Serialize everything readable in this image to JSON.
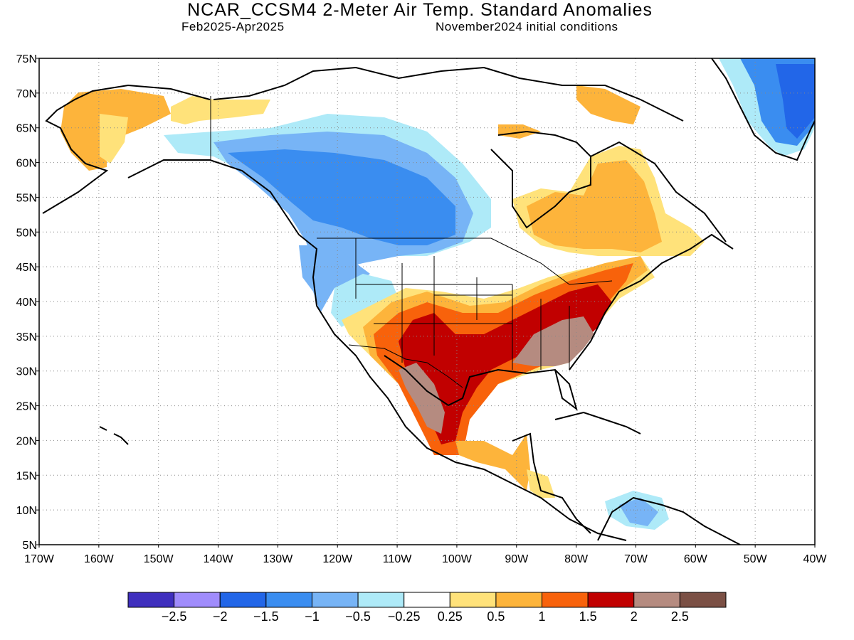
{
  "header": {
    "title": "NCAR_CCSM4 2-Meter Air Temp. Standard Anomalies",
    "period": "Feb2025-Apr2025",
    "initial_conditions": "November2024 initial conditions"
  },
  "map": {
    "lat_ticks": [
      "75N",
      "70N",
      "65N",
      "60N",
      "55N",
      "50N",
      "45N",
      "40N",
      "35N",
      "30N",
      "25N",
      "20N",
      "15N",
      "10N",
      "5N"
    ],
    "lon_ticks": [
      "170W",
      "160W",
      "150W",
      "140W",
      "130W",
      "120W",
      "110W",
      "100W",
      "90W",
      "80W",
      "70W",
      "60W",
      "50W",
      "40W"
    ],
    "lat_range": [
      5,
      75
    ],
    "lon_range": [
      -170,
      -40
    ],
    "grid": "dotted",
    "anomaly_regions": [
      {
        "region": "Alaska north/west",
        "level": "0.5 to 1"
      },
      {
        "region": "Western Canada",
        "level": "-1.5 to -1"
      },
      {
        "region": "Pacific Northwest US",
        "level": "-1 to -0.5"
      },
      {
        "region": "Southern Plains / Texas",
        "level": "1.5 to 2"
      },
      {
        "region": "Southeast US / Georgia",
        "level": "2 to 2.5"
      },
      {
        "region": "Mid-Atlantic",
        "level": "1.5 to 2"
      },
      {
        "region": "Northern Mexico",
        "level": "2 to 2.5"
      },
      {
        "region": "Quebec / Labrador",
        "level": "0.5 to 1"
      },
      {
        "region": "Greenland",
        "level": "-1.5 to -1"
      },
      {
        "region": "Caribbean / Venezuela",
        "level": "-1 to -0.5"
      }
    ]
  },
  "colorbar": {
    "colors": [
      "#3f2fbe",
      "#a08cfc",
      "#2266e8",
      "#3a8df0",
      "#77b4f6",
      "#aeeaf8",
      "#ffffff",
      "#ffe27a",
      "#fdb43b",
      "#f8620b",
      "#c10000",
      "#b58b80",
      "#7b5045"
    ],
    "labels": [
      "-2.5",
      "-2",
      "-1.5",
      "-1",
      "-0.5",
      "-0.25",
      "0.25",
      "0.5",
      "1",
      "1.5",
      "2",
      "2.5"
    ]
  }
}
